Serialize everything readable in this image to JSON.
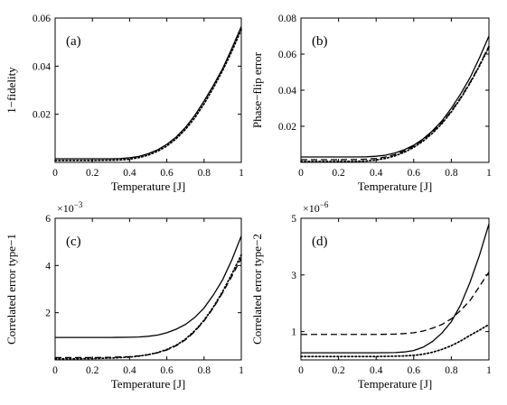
{
  "chart_data": [
    {
      "type": "line",
      "panel_label": "(a)",
      "xlabel": "Temperature [J]",
      "ylabel": "1−fidelity",
      "multiplier_base": "",
      "multiplier_exp": "",
      "xlim": [
        0,
        1
      ],
      "ylim": [
        0,
        0.06
      ],
      "xticks": [
        0,
        0.2,
        0.4,
        0.6,
        0.8,
        1
      ],
      "xtick_labels": [
        "0",
        "0.2",
        "0.4",
        "0.6",
        "0.8",
        "1"
      ],
      "yticks": [
        0.02,
        0.04,
        0.06
      ],
      "ytick_labels": [
        "0.02",
        "0.04",
        "0.06"
      ],
      "series": [
        {
          "style": "solid",
          "x": [
            0,
            0.1,
            0.2,
            0.3,
            0.35,
            0.4,
            0.45,
            0.5,
            0.55,
            0.6,
            0.65,
            0.7,
            0.75,
            0.8,
            0.85,
            0.9,
            0.95,
            1.0
          ],
          "y": [
            0.0015,
            0.0015,
            0.0015,
            0.0015,
            0.0016,
            0.0019,
            0.0025,
            0.0036,
            0.0052,
            0.0075,
            0.0105,
            0.0145,
            0.0195,
            0.0255,
            0.032,
            0.039,
            0.0475,
            0.0565
          ]
        },
        {
          "style": "dotted",
          "x": [
            0,
            0.1,
            0.2,
            0.3,
            0.35,
            0.4,
            0.45,
            0.5,
            0.55,
            0.6,
            0.65,
            0.7,
            0.75,
            0.8,
            0.85,
            0.9,
            0.95,
            1.0
          ],
          "y": [
            0.0008,
            0.0008,
            0.0008,
            0.0009,
            0.001,
            0.0013,
            0.002,
            0.003,
            0.0046,
            0.0068,
            0.0098,
            0.0137,
            0.0185,
            0.0243,
            0.031,
            0.0382,
            0.0463,
            0.0552
          ]
        }
      ]
    },
    {
      "type": "line",
      "panel_label": "(b)",
      "xlabel": "Temperature [J]",
      "ylabel": "Phase−flip error",
      "multiplier_base": "",
      "multiplier_exp": "",
      "xlim": [
        0,
        1
      ],
      "ylim": [
        0,
        0.08
      ],
      "xticks": [
        0,
        0.2,
        0.4,
        0.6,
        0.8,
        1
      ],
      "xtick_labels": [
        "0",
        "0.2",
        "0.4",
        "0.6",
        "0.8",
        "1"
      ],
      "yticks": [
        0.02,
        0.04,
        0.06,
        0.08
      ],
      "ytick_labels": [
        "0.02",
        "0.04",
        "0.06",
        "0.08"
      ],
      "series": [
        {
          "style": "solid",
          "x": [
            0,
            0.1,
            0.2,
            0.3,
            0.35,
            0.4,
            0.45,
            0.5,
            0.55,
            0.6,
            0.65,
            0.7,
            0.75,
            0.8,
            0.85,
            0.9,
            0.95,
            1.0
          ],
          "y": [
            0.003,
            0.003,
            0.003,
            0.003,
            0.0031,
            0.0034,
            0.004,
            0.0052,
            0.007,
            0.0095,
            0.013,
            0.0175,
            0.023,
            0.03,
            0.038,
            0.047,
            0.058,
            0.07
          ]
        },
        {
          "style": "dashed",
          "x": [
            0,
            0.1,
            0.2,
            0.3,
            0.35,
            0.4,
            0.45,
            0.5,
            0.55,
            0.6,
            0.65,
            0.7,
            0.75,
            0.8,
            0.85,
            0.9,
            0.95,
            1.0
          ],
          "y": [
            0.0015,
            0.0015,
            0.0015,
            0.0016,
            0.0018,
            0.0022,
            0.003,
            0.0043,
            0.0063,
            0.009,
            0.0125,
            0.0168,
            0.022,
            0.0285,
            0.036,
            0.0445,
            0.054,
            0.0645
          ]
        },
        {
          "style": "dotted",
          "x": [
            0,
            0.1,
            0.2,
            0.3,
            0.35,
            0.4,
            0.45,
            0.5,
            0.55,
            0.6,
            0.65,
            0.7,
            0.75,
            0.8,
            0.85,
            0.9,
            0.95,
            1.0
          ],
          "y": [
            0.0005,
            0.0005,
            0.0005,
            0.0006,
            0.0008,
            0.0013,
            0.0022,
            0.0036,
            0.0056,
            0.0083,
            0.0118,
            0.0162,
            0.0215,
            0.028,
            0.0355,
            0.044,
            0.0535,
            0.064
          ]
        }
      ]
    },
    {
      "type": "line",
      "panel_label": "(c)",
      "xlabel": "Temperature [J]",
      "ylabel": "Correlated error type−1",
      "multiplier_base": "×10",
      "multiplier_exp": "−3",
      "xlim": [
        0,
        1
      ],
      "ylim": [
        0,
        6
      ],
      "xticks": [
        0,
        0.2,
        0.4,
        0.6,
        0.8,
        1
      ],
      "xtick_labels": [
        "0",
        "0.2",
        "0.4",
        "0.6",
        "0.8",
        "1"
      ],
      "yticks": [
        2,
        4,
        6
      ],
      "ytick_labels": [
        "2",
        "4",
        "6"
      ],
      "series": [
        {
          "style": "solid",
          "x": [
            0,
            0.1,
            0.2,
            0.3,
            0.4,
            0.45,
            0.5,
            0.55,
            0.6,
            0.65,
            0.7,
            0.75,
            0.8,
            0.85,
            0.9,
            0.95,
            1.0
          ],
          "y": [
            0.95,
            0.95,
            0.95,
            0.95,
            0.96,
            0.97,
            1.0,
            1.05,
            1.15,
            1.3,
            1.5,
            1.8,
            2.2,
            2.75,
            3.4,
            4.25,
            5.25
          ]
        },
        {
          "style": "dashed",
          "x": [
            0,
            0.1,
            0.2,
            0.3,
            0.4,
            0.45,
            0.5,
            0.55,
            0.6,
            0.65,
            0.7,
            0.75,
            0.8,
            0.85,
            0.9,
            0.95,
            1.0
          ],
          "y": [
            0.1,
            0.1,
            0.1,
            0.11,
            0.14,
            0.17,
            0.22,
            0.3,
            0.42,
            0.6,
            0.85,
            1.2,
            1.65,
            2.2,
            2.85,
            3.55,
            4.3
          ]
        },
        {
          "style": "dotted",
          "x": [
            0,
            0.1,
            0.2,
            0.3,
            0.4,
            0.45,
            0.5,
            0.55,
            0.6,
            0.65,
            0.7,
            0.75,
            0.8,
            0.85,
            0.9,
            0.95,
            1.0
          ],
          "y": [
            0.05,
            0.05,
            0.06,
            0.08,
            0.12,
            0.16,
            0.22,
            0.31,
            0.44,
            0.62,
            0.88,
            1.23,
            1.68,
            2.24,
            2.9,
            3.65,
            4.45
          ]
        }
      ]
    },
    {
      "type": "line",
      "panel_label": "(d)",
      "xlabel": "Temperature [J]",
      "ylabel": "Correlated error type−2",
      "multiplier_base": "×10",
      "multiplier_exp": "−6",
      "xlim": [
        0,
        1
      ],
      "ylim": [
        0,
        5
      ],
      "xticks": [
        0,
        0.2,
        0.4,
        0.6,
        0.8,
        1
      ],
      "xtick_labels": [
        "0",
        "0.2",
        "0.4",
        "0.6",
        "0.8",
        "1"
      ],
      "yticks": [
        1,
        3,
        5
      ],
      "ytick_labels": [
        "1",
        "3",
        "5"
      ],
      "series": [
        {
          "style": "solid",
          "x": [
            0,
            0.1,
            0.2,
            0.3,
            0.4,
            0.5,
            0.55,
            0.6,
            0.65,
            0.7,
            0.75,
            0.8,
            0.85,
            0.9,
            0.95,
            1.0
          ],
          "y": [
            0.25,
            0.25,
            0.25,
            0.25,
            0.25,
            0.26,
            0.28,
            0.33,
            0.45,
            0.65,
            0.95,
            1.35,
            1.95,
            2.75,
            3.7,
            4.8
          ]
        },
        {
          "style": "dashed",
          "x": [
            0,
            0.1,
            0.2,
            0.3,
            0.4,
            0.5,
            0.55,
            0.6,
            0.65,
            0.7,
            0.75,
            0.8,
            0.85,
            0.9,
            0.95,
            1.0
          ],
          "y": [
            0.9,
            0.9,
            0.9,
            0.9,
            0.9,
            0.91,
            0.93,
            0.96,
            1.02,
            1.12,
            1.25,
            1.45,
            1.75,
            2.1,
            2.6,
            3.1
          ]
        },
        {
          "style": "dotted",
          "x": [
            0,
            0.1,
            0.2,
            0.3,
            0.4,
            0.5,
            0.55,
            0.6,
            0.65,
            0.7,
            0.75,
            0.8,
            0.85,
            0.9,
            0.95,
            1.0
          ],
          "y": [
            0.12,
            0.12,
            0.12,
            0.12,
            0.12,
            0.13,
            0.14,
            0.16,
            0.2,
            0.27,
            0.37,
            0.5,
            0.67,
            0.87,
            1.05,
            1.25
          ]
        }
      ]
    }
  ]
}
